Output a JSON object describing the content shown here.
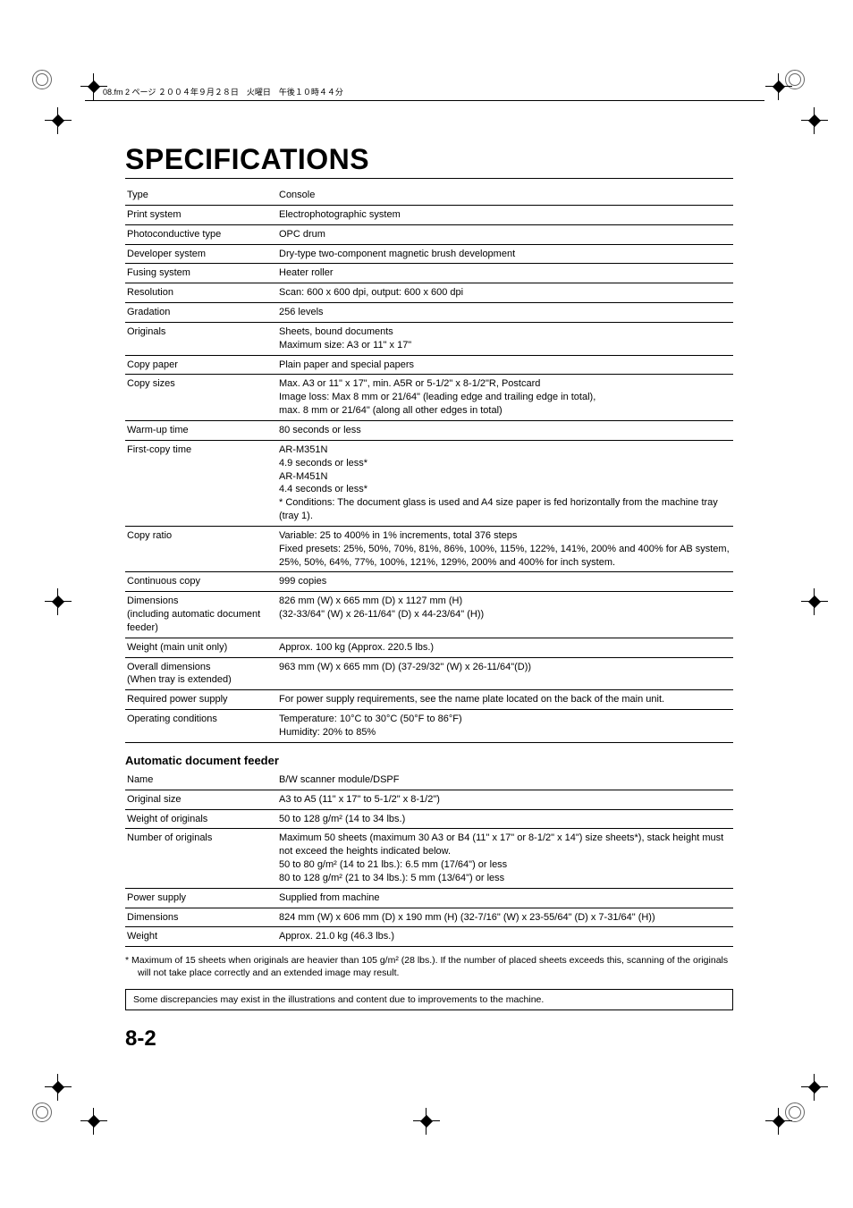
{
  "crop_header": "08.fm  2 ページ  ２００４年９月２８日　火曜日　午後１０時４４分",
  "title": "SPECIFICATIONS",
  "specs": [
    {
      "label": "Type",
      "value": "Console"
    },
    {
      "label": "Print system",
      "value": "Electrophotographic system"
    },
    {
      "label": "Photoconductive type",
      "value": "OPC drum"
    },
    {
      "label": "Developer system",
      "value": "Dry-type two-component magnetic brush development"
    },
    {
      "label": "Fusing system",
      "value": "Heater roller"
    },
    {
      "label": "Resolution",
      "value": "Scan: 600 x 600 dpi, output: 600 x 600 dpi"
    },
    {
      "label": "Gradation",
      "value": "256 levels"
    },
    {
      "label": "Originals",
      "value": "Sheets, bound documents\nMaximum size: A3 or 11\" x 17\""
    },
    {
      "label": "Copy paper",
      "value": "Plain paper and special papers"
    },
    {
      "label": "Copy sizes",
      "value": "Max. A3 or 11\" x 17\", min. A5R or 5-1/2\" x 8-1/2\"R, Postcard\nImage loss: Max 8 mm or 21/64\" (leading edge and trailing edge in total),\nmax. 8 mm or 21/64\" (along all other edges in total)"
    },
    {
      "label": "Warm-up time",
      "value": "80 seconds or less"
    },
    {
      "label": "First-copy time",
      "value": "AR-M351N\n4.9 seconds or less*\nAR-M451N\n4.4 seconds or less*\n* Conditions:  The document glass is used and A4 size paper is fed horizontally from the machine tray (tray 1)."
    },
    {
      "label": "Copy ratio",
      "value": "Variable: 25 to 400% in 1% increments, total 376 steps\nFixed presets: 25%, 50%, 70%, 81%, 86%, 100%, 115%, 122%, 141%,  200% and 400% for AB system, 25%, 50%, 64%, 77%, 100%, 121%, 129%, 200% and 400% for inch system."
    },
    {
      "label": "Continuous copy",
      "value": "999 copies"
    },
    {
      "label": "Dimensions\n(including automatic document feeder)",
      "value": "826 mm (W) x 665 mm (D) x 1127 mm (H)\n(32-33/64\" (W) x 26-11/64\" (D) x 44-23/64\" (H))"
    },
    {
      "label": "Weight (main unit only)",
      "value": "Approx. 100 kg (Approx. 220.5 lbs.)"
    },
    {
      "label": "Overall dimensions\n(When tray is extended)",
      "value": "963 mm (W) x 665 mm (D) (37-29/32\" (W) x 26-11/64\"(D))"
    },
    {
      "label": "Required power supply",
      "value": "For power supply requirements, see the name plate located on the back of the main unit."
    },
    {
      "label": "Operating conditions",
      "value": "Temperature: 10°C to 30°C (50°F to 86°F)\nHumidity: 20% to 85%"
    }
  ],
  "section2_heading": "Automatic document feeder",
  "adf": [
    {
      "label": "Name",
      "value": "B/W scanner module/DSPF"
    },
    {
      "label": "Original size",
      "value": "A3 to A5 (11\" x 17\" to 5-1/2\" x 8-1/2\")"
    },
    {
      "label": "Weight of originals",
      "value": "50 to 128 g/m² (14 to 34 lbs.)"
    },
    {
      "label": "Number of originals",
      "value": "Maximum 50 sheets (maximum 30 A3 or B4 (11\" x 17\" or 8-1/2\" x 14\") size sheets*), stack height must not exceed the heights indicated below.\n50 to 80 g/m² (14 to 21 lbs.): 6.5 mm (17/64\") or less\n80 to 128 g/m² (21 to 34 lbs.): 5 mm (13/64\") or less"
    },
    {
      "label": "Power supply",
      "value": "Supplied from machine"
    },
    {
      "label": "Dimensions",
      "value": "824 mm (W) x 606 mm (D) x 190 mm (H) (32-7/16\" (W) x 23-55/64\" (D) x 7-31/64\" (H))"
    },
    {
      "label": "Weight",
      "value": "Approx. 21.0 kg (46.3 lbs.)"
    }
  ],
  "footnote": "*    Maximum of 15 sheets when originals are heavier than 105 g/m² (28 lbs.). If the number of placed sheets exceeds this, scanning of the originals will not take place correctly and an extended image may result.",
  "notice": "Some discrepancies may exist in the illustrations and content due to improvements to the machine.",
  "page_number": "8-2"
}
